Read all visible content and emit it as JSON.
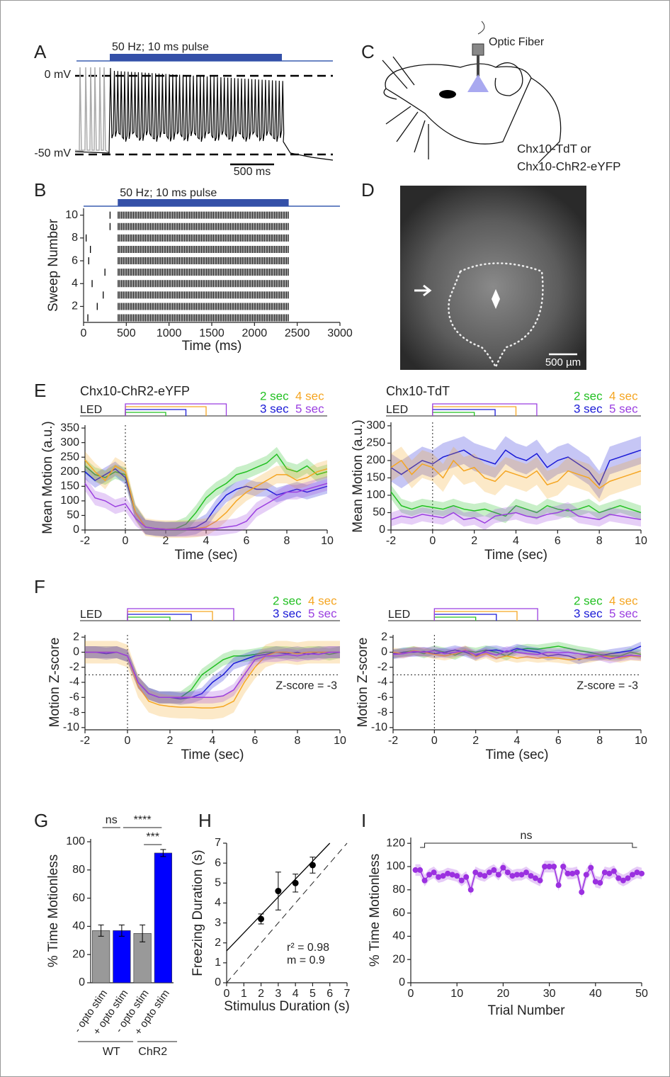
{
  "panels": [
    "A",
    "B",
    "C",
    "D",
    "E",
    "F",
    "G",
    "H",
    "I"
  ],
  "panel_a": {
    "stimulus_label": "50 Hz; 10 ms pulse",
    "levels": [
      "0 mV",
      "-50 mV"
    ],
    "scale_bar": "500 ms"
  },
  "panel_c": {
    "fiber_label": "Optic Fiber",
    "genotypes": [
      "Chx10-TdT or",
      "Chx10-ChR2-eYFP"
    ]
  },
  "panel_d": {
    "scale_bar": "500 µm"
  },
  "chart_data": [
    {
      "type": "raster",
      "stimulus_label": "50 Hz; 10 ms pulse",
      "stimulus": [
        400,
        2400
      ],
      "x_label": "Time (ms)",
      "y_label": "Sweep Number",
      "xlim": [
        0,
        3000
      ],
      "xticks": [
        0,
        500,
        1000,
        1500,
        2000,
        2500,
        3000
      ],
      "ylim": [
        0.6,
        10.6
      ],
      "yticks": [
        2,
        4,
        6,
        8,
        10
      ],
      "sweeps": [
        1,
        2,
        3,
        4,
        5,
        6,
        7,
        8,
        9,
        10
      ],
      "early_spikes": [
        [
          50
        ],
        [
          160
        ],
        [
          230
        ],
        [
          100
        ],
        [
          250
        ],
        [
          60
        ],
        [
          80
        ],
        [
          30
        ],
        [
          310
        ],
        [
          310
        ]
      ]
    },
    {
      "type": "line",
      "title": "Chx10-ChR2-eYFP",
      "stimulus_label": "LED",
      "x_label": "Time (sec)",
      "y_label": "Mean Motion (a.u.)",
      "onset": 0,
      "x": [
        -2,
        -1.5,
        -1,
        -0.5,
        0,
        0.5,
        1,
        1.5,
        2,
        2.5,
        3,
        3.5,
        4,
        4.5,
        5,
        5.5,
        6,
        6.5,
        7,
        7.5,
        8,
        8.5,
        9,
        9.5,
        10
      ],
      "xlim": [
        -2,
        10
      ],
      "xticks": [
        -2,
        0,
        2,
        4,
        6,
        8,
        10
      ],
      "ylim": [
        0,
        360
      ],
      "yticks": [
        0,
        50,
        100,
        150,
        200,
        250,
        300,
        350
      ],
      "series": [
        {
          "name": "2 sec",
          "duration": 2,
          "color": "#22c022",
          "error": 25,
          "values": [
            220,
            190,
            180,
            200,
            190,
            60,
            10,
            5,
            3,
            5,
            20,
            60,
            110,
            140,
            160,
            190,
            200,
            215,
            230,
            260,
            210,
            200,
            220,
            190,
            200
          ]
        },
        {
          "name": "3 sec",
          "duration": 3,
          "color": "#1a1ad6",
          "error": 25,
          "values": [
            200,
            170,
            190,
            210,
            180,
            60,
            10,
            5,
            3,
            3,
            5,
            10,
            30,
            80,
            120,
            140,
            150,
            140,
            140,
            120,
            130,
            140,
            130,
            140,
            150
          ]
        },
        {
          "name": "4 sec",
          "duration": 4,
          "color": "#f5a623",
          "error": 30,
          "values": [
            240,
            200,
            170,
            220,
            200,
            60,
            10,
            5,
            3,
            3,
            3,
            5,
            10,
            30,
            60,
            100,
            130,
            150,
            170,
            190,
            190,
            170,
            180,
            200,
            210
          ]
        },
        {
          "name": "5 sec",
          "duration": 5,
          "color": "#9b3fe0",
          "error": 25,
          "values": [
            160,
            110,
            100,
            80,
            90,
            40,
            10,
            5,
            2,
            2,
            2,
            3,
            5,
            5,
            10,
            15,
            30,
            70,
            90,
            110,
            130,
            130,
            140,
            150,
            160
          ]
        }
      ]
    },
    {
      "type": "line",
      "title": "Chx10-TdT",
      "stimulus_label": "LED",
      "x_label": "Time (sec)",
      "y_label": "Mean Motion (a.u.)",
      "onset": 0,
      "x": [
        -2,
        -1.5,
        -1,
        -0.5,
        0,
        0.5,
        1,
        1.5,
        2,
        2.5,
        3,
        3.5,
        4,
        4.5,
        5,
        5.5,
        6,
        6.5,
        7,
        7.5,
        8,
        8.5,
        9,
        9.5,
        10
      ],
      "xlim": [
        -2,
        10
      ],
      "xticks": [
        -2,
        0,
        2,
        4,
        6,
        8,
        10
      ],
      "ylim": [
        0,
        310
      ],
      "yticks": [
        0,
        50,
        100,
        150,
        200,
        250,
        300
      ],
      "series": [
        {
          "name": "2 sec",
          "duration": 2,
          "color": "#22c022",
          "error": 20,
          "values": [
            110,
            70,
            60,
            70,
            65,
            60,
            70,
            60,
            55,
            60,
            50,
            40,
            70,
            60,
            50,
            70,
            60,
            55,
            60,
            70,
            50,
            60,
            70,
            60,
            50
          ]
        },
        {
          "name": "3 sec",
          "duration": 3,
          "color": "#1a1ad6",
          "error": 40,
          "values": [
            180,
            160,
            180,
            200,
            190,
            210,
            220,
            230,
            210,
            200,
            190,
            230,
            210,
            200,
            220,
            180,
            200,
            210,
            190,
            170,
            130,
            200,
            210,
            220,
            230
          ]
        },
        {
          "name": "4 sec",
          "duration": 4,
          "color": "#f5a623",
          "error": 40,
          "values": [
            180,
            200,
            160,
            190,
            180,
            150,
            200,
            170,
            180,
            150,
            140,
            170,
            160,
            150,
            170,
            130,
            140,
            170,
            160,
            150,
            120,
            140,
            150,
            160,
            170
          ]
        },
        {
          "name": "5 sec",
          "duration": 5,
          "color": "#9b3fe0",
          "error": 20,
          "values": [
            30,
            40,
            35,
            45,
            40,
            35,
            50,
            30,
            35,
            20,
            40,
            45,
            50,
            40,
            35,
            45,
            50,
            60,
            40,
            35,
            30,
            45,
            40,
            35,
            30
          ]
        }
      ]
    },
    {
      "type": "line",
      "stimulus_label": "LED",
      "x_label": "Time (sec)",
      "y_label": "Motion Z-score",
      "onset": 0,
      "threshold": -3,
      "threshold_label": "Z-score = -3",
      "x": [
        -2,
        -1.5,
        -1,
        -0.5,
        0,
        0.5,
        1,
        1.5,
        2,
        2.5,
        3,
        3.5,
        4,
        4.5,
        5,
        5.5,
        6,
        6.5,
        7,
        7.5,
        8,
        8.5,
        9,
        9.5,
        10
      ],
      "xlim": [
        -2,
        10
      ],
      "xticks": [
        -2,
        0,
        2,
        4,
        6,
        8,
        10
      ],
      "ylim": [
        -10.3,
        2.3
      ],
      "yticks": [
        -10,
        -8,
        -6,
        -4,
        -2,
        0,
        2
      ],
      "series": [
        {
          "name": "2 sec",
          "duration": 2,
          "color": "#22c022",
          "error": 0.8,
          "values": [
            0,
            0,
            0,
            0,
            -0.5,
            -4,
            -5.5,
            -6,
            -6,
            -6,
            -5,
            -3,
            -2,
            -1,
            -0.5,
            -0.5,
            -0.3,
            0,
            0,
            0,
            -0.2,
            0,
            0,
            -0.3,
            0
          ]
        },
        {
          "name": "3 sec",
          "duration": 3,
          "color": "#1a1ad6",
          "error": 0.8,
          "values": [
            0,
            0,
            -0.2,
            0,
            -0.5,
            -4,
            -5.5,
            -6,
            -6,
            -6.2,
            -6,
            -5.5,
            -4,
            -3,
            -1.5,
            -1,
            -0.5,
            -0.3,
            0,
            -0.2,
            0,
            -0.3,
            0,
            0,
            0
          ]
        },
        {
          "name": "4 sec",
          "duration": 4,
          "color": "#f5a623",
          "error": 1.5,
          "values": [
            0,
            0,
            0,
            0,
            -0.5,
            -4.5,
            -6.5,
            -7,
            -7.2,
            -7.3,
            -7.3,
            -7.4,
            -7.4,
            -7.2,
            -6.5,
            -4,
            -2,
            -0.5,
            0,
            0,
            -0.2,
            0,
            0,
            0,
            0
          ]
        },
        {
          "name": "5 sec",
          "duration": 5,
          "color": "#9b3fe0",
          "error": 0.8,
          "values": [
            0,
            0,
            0,
            0,
            -0.5,
            -4,
            -5.5,
            -6,
            -6,
            -6,
            -6,
            -6,
            -6,
            -5.8,
            -5,
            -3,
            -1,
            -0.5,
            -0.5,
            -0.3,
            -0.5,
            -0.2,
            -0.3,
            0,
            0
          ]
        }
      ]
    },
    {
      "type": "line",
      "stimulus_label": "LED",
      "x_label": "Time (sec)",
      "y_label": "Motion Z-score",
      "onset": 0,
      "threshold": -3,
      "threshold_label": "Z-score = -3",
      "x": [
        -2,
        -1.5,
        -1,
        -0.5,
        0,
        0.5,
        1,
        1.5,
        2,
        2.5,
        3,
        3.5,
        4,
        4.5,
        5,
        5.5,
        6,
        6.5,
        7,
        7.5,
        8,
        8.5,
        9,
        9.5,
        10
      ],
      "xlim": [
        -2,
        10
      ],
      "xticks": [
        -2,
        0,
        2,
        4,
        6,
        8,
        10
      ],
      "ylim": [
        -10.3,
        2.3
      ],
      "yticks": [
        -10,
        -8,
        -6,
        -4,
        -2,
        0,
        2
      ],
      "series": [
        {
          "name": "2 sec",
          "duration": 2,
          "color": "#22c022",
          "error": 0.6,
          "values": [
            -0.3,
            0,
            0.2,
            -0.2,
            0.3,
            0,
            -0.4,
            0.2,
            0,
            0.3,
            0,
            -0.5,
            0.3,
            0.5,
            0.4,
            0.6,
            0.8,
            0.5,
            0.2,
            0,
            -0.3,
            -0.5,
            -0.5,
            0,
            -0.3
          ]
        },
        {
          "name": "3 sec",
          "duration": 3,
          "color": "#1a1ad6",
          "error": 0.6,
          "values": [
            -0.2,
            0,
            0,
            0.1,
            -0.2,
            0,
            0.3,
            0,
            -0.5,
            0.2,
            0.3,
            0,
            0.5,
            0.2,
            0,
            -0.5,
            -0.3,
            -0.5,
            -1,
            -0.6,
            -0.5,
            -0.2,
            0,
            0.2,
            0.8
          ]
        },
        {
          "name": "4 sec",
          "duration": 4,
          "color": "#f5a623",
          "error": 0.6,
          "values": [
            0,
            -0.2,
            0.2,
            0,
            -0.3,
            -0.5,
            -0.2,
            0.3,
            -0.6,
            -0.2,
            -0.8,
            -0.5,
            -0.8,
            -0.6,
            -0.8,
            -0.7,
            -0.8,
            -1,
            -0.9,
            -0.8,
            -0.5,
            -0.6,
            -0.8,
            -0.5,
            -0.6
          ]
        },
        {
          "name": "5 sec",
          "duration": 5,
          "color": "#9b3fe0",
          "error": 0.6,
          "values": [
            -0.3,
            -0.2,
            0.1,
            0,
            0.2,
            -0.2,
            0,
            0.2,
            -0.3,
            0,
            -0.4,
            0.2,
            0,
            -0.2,
            -0.3,
            0,
            -0.1,
            0,
            -0.2,
            -0.4,
            -0.5,
            -0.9,
            -0.6,
            -0.4,
            -0.5
          ]
        }
      ]
    },
    {
      "type": "bar",
      "y_label": "% Time Motionless",
      "categories": [
        "- opto stim",
        "+ opto stim",
        "- opto stim",
        "+ opto stim"
      ],
      "values": [
        37,
        37,
        35,
        92
      ],
      "errors": [
        4,
        4,
        6,
        2.5
      ],
      "colors": [
        "#999999",
        "#0000ff",
        "#999999",
        "#0000ff"
      ],
      "ylim": [
        0,
        102
      ],
      "yticks": [
        0,
        20,
        40,
        60,
        80,
        100
      ],
      "groups": [
        "WT",
        "ChR2"
      ],
      "significance": [
        "ns",
        "****",
        "***"
      ]
    },
    {
      "type": "scatter",
      "x_label": "Stimulus Duration (s)",
      "y_label": "Freezing Duration (s)",
      "x": [
        2,
        3,
        4,
        5
      ],
      "values": [
        3.2,
        4.6,
        5.0,
        5.9
      ],
      "errors": [
        0.25,
        0.95,
        0.45,
        0.4
      ],
      "xlim": [
        0,
        7
      ],
      "xticks": [
        0,
        1,
        2,
        3,
        4,
        5,
        6,
        7
      ],
      "ylim": [
        0,
        7
      ],
      "yticks": [
        0,
        1,
        2,
        3,
        4,
        5,
        6,
        7
      ],
      "fit": {
        "slope": 0.9,
        "intercept": 1.6
      },
      "annotations": [
        "r² = 0.98",
        "m = 0.9"
      ]
    },
    {
      "type": "line",
      "markers": true,
      "x_label": "Trial Number",
      "y_label": "% Time Motionless",
      "color": "#9b30e0",
      "error": 5,
      "significance": "ns",
      "x": [
        1,
        2,
        3,
        4,
        5,
        6,
        7,
        8,
        9,
        10,
        11,
        12,
        13,
        14,
        15,
        16,
        17,
        18,
        19,
        20,
        21,
        22,
        23,
        24,
        25,
        26,
        27,
        28,
        29,
        30,
        31,
        32,
        33,
        34,
        35,
        36,
        37,
        38,
        39,
        40,
        41,
        42,
        43,
        44,
        45,
        46,
        47,
        48,
        49,
        50
      ],
      "values": [
        97,
        97,
        88,
        93,
        95,
        91,
        92,
        94,
        93,
        92,
        88,
        91,
        80,
        95,
        93,
        92,
        95,
        97,
        93,
        99,
        95,
        92,
        93,
        93,
        95,
        92,
        90,
        88,
        100,
        100,
        100,
        84,
        100,
        94,
        94,
        95,
        78,
        93,
        99,
        87,
        86,
        95,
        94,
        96,
        90,
        88,
        90,
        93,
        95,
        94
      ],
      "xlim": [
        0,
        50
      ],
      "xticks": [
        0,
        10,
        20,
        30,
        40,
        50
      ],
      "ylim": [
        0,
        125
      ],
      "yticks": [
        0,
        20,
        40,
        60,
        80,
        100,
        120
      ]
    }
  ]
}
